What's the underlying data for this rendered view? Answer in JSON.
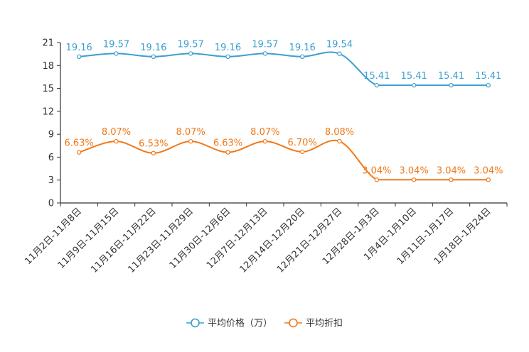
{
  "chart_data": {
    "type": "line",
    "title": "",
    "xlabel": "",
    "ylabel": "",
    "ylim": [
      0,
      21
    ],
    "yticks": [
      "0",
      "3",
      "6",
      "9",
      "12",
      "15",
      "18",
      "21"
    ],
    "categories": [
      "11月2日-11月8日",
      "11月9日-11月15日",
      "11月16日-11月22日",
      "11月23日-11月29日",
      "11月30日-12月6日",
      "12月7日-12月13日",
      "12月14日-12月20日",
      "12月21日-12月27日",
      "12月28日-1月3日",
      "1月4日-1月10日",
      "1月11日-1月17日",
      "1月18日-1月24日"
    ],
    "series": [
      {
        "name": "平均价格（万）",
        "color": "#3b9fcf",
        "values": [
          19.16,
          19.57,
          19.16,
          19.57,
          19.16,
          19.57,
          19.16,
          19.54,
          15.41,
          15.41,
          15.41,
          15.41
        ],
        "labels": [
          "19.16",
          "19.57",
          "19.16",
          "19.57",
          "19.16",
          "19.57",
          "19.16",
          "19.54",
          "15.41",
          "15.41",
          "15.41",
          "15.41"
        ]
      },
      {
        "name": "平均折扣",
        "color": "#f07818",
        "values": [
          6.63,
          8.07,
          6.53,
          8.07,
          6.63,
          8.07,
          6.7,
          8.08,
          3.04,
          3.04,
          3.04,
          3.04
        ],
        "labels": [
          "6.63%",
          "8.07%",
          "6.53%",
          "8.07%",
          "6.63%",
          "8.07%",
          "6.70%",
          "8.08%",
          "3.04%",
          "3.04%",
          "3.04%",
          "3.04%"
        ]
      }
    ],
    "legend_position": "bottom-center"
  }
}
